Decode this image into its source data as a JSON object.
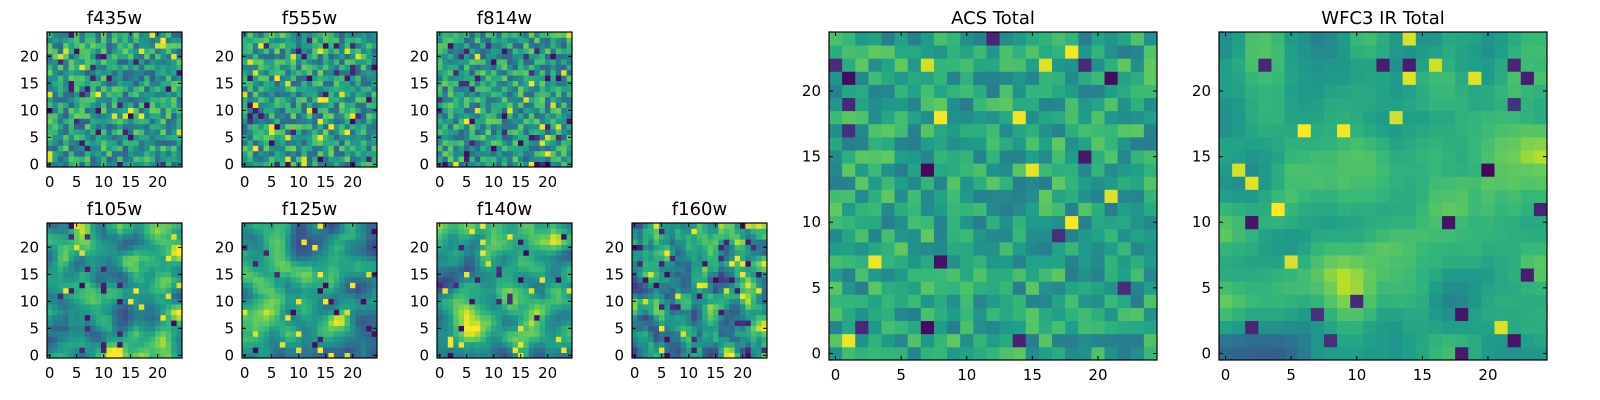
{
  "figure": {
    "colormap": "viridis",
    "colors": {
      "low": "#440154",
      "mid": "#21918c",
      "high": "#fde725",
      "frame": "#000000",
      "background": "#ffffff"
    }
  },
  "chart_data": [
    {
      "id": "f435w",
      "type": "heatmap",
      "title": "f435w",
      "grid_size": [
        25,
        25
      ],
      "seed": 11,
      "smoothness": 0,
      "mean": 0.62,
      "spread": 0.17,
      "outlier_rate": 0.045,
      "xticks": [
        0,
        5,
        10,
        15,
        20
      ],
      "yticks": [
        0,
        5,
        10,
        15,
        20
      ],
      "xlim": [
        0,
        24
      ],
      "ylim": [
        0,
        24
      ]
    },
    {
      "id": "f555w",
      "type": "heatmap",
      "title": "f555w",
      "grid_size": [
        25,
        25
      ],
      "seed": 23,
      "smoothness": 0,
      "mean": 0.62,
      "spread": 0.17,
      "outlier_rate": 0.045,
      "xticks": [
        0,
        5,
        10,
        15,
        20
      ],
      "yticks": [
        0,
        5,
        10,
        15,
        20
      ],
      "xlim": [
        0,
        24
      ],
      "ylim": [
        0,
        24
      ]
    },
    {
      "id": "f814w",
      "type": "heatmap",
      "title": "f814w",
      "grid_size": [
        25,
        25
      ],
      "seed": 37,
      "smoothness": 0,
      "mean": 0.62,
      "spread": 0.17,
      "outlier_rate": 0.045,
      "xticks": [
        0,
        5,
        10,
        15,
        20
      ],
      "yticks": [
        0,
        5,
        10,
        15,
        20
      ],
      "xlim": [
        0,
        24
      ],
      "ylim": [
        0,
        24
      ]
    },
    {
      "id": "f105w",
      "type": "heatmap",
      "title": "f105w",
      "grid_size": [
        25,
        25
      ],
      "seed": 41,
      "smoothness": 2,
      "mean": 0.64,
      "spread": 0.16,
      "outlier_rate": 0.03,
      "xticks": [
        0,
        5,
        10,
        15,
        20
      ],
      "yticks": [
        0,
        5,
        10,
        15,
        20
      ],
      "xlim": [
        0,
        24
      ],
      "ylim": [
        0,
        24
      ]
    },
    {
      "id": "f125w",
      "type": "heatmap",
      "title": "f125w",
      "grid_size": [
        25,
        25
      ],
      "seed": 53,
      "smoothness": 2,
      "mean": 0.6,
      "spread": 0.17,
      "outlier_rate": 0.035,
      "xticks": [
        0,
        5,
        10,
        15,
        20
      ],
      "yticks": [
        0,
        5,
        10,
        15,
        20
      ],
      "xlim": [
        0,
        24
      ],
      "ylim": [
        0,
        24
      ]
    },
    {
      "id": "f140w",
      "type": "heatmap",
      "title": "f140w",
      "grid_size": [
        25,
        25
      ],
      "seed": 67,
      "smoothness": 2,
      "mean": 0.66,
      "spread": 0.16,
      "outlier_rate": 0.03,
      "xticks": [
        0,
        5,
        10,
        15,
        20
      ],
      "yticks": [
        0,
        5,
        10,
        15,
        20
      ],
      "xlim": [
        0,
        24
      ],
      "ylim": [
        0,
        24
      ]
    },
    {
      "id": "f160w",
      "type": "heatmap",
      "title": "f160w",
      "grid_size": [
        25,
        25
      ],
      "seed": 79,
      "smoothness": 1,
      "mean": 0.6,
      "spread": 0.18,
      "outlier_rate": 0.05,
      "xticks": [
        0,
        5,
        10,
        15,
        20
      ],
      "yticks": [
        0,
        5,
        10,
        15,
        20
      ],
      "xlim": [
        0,
        24
      ],
      "ylim": [
        0,
        24
      ]
    },
    {
      "id": "acs-total",
      "type": "heatmap",
      "title": "ACS Total",
      "grid_size": [
        25,
        25
      ],
      "seed": 83,
      "smoothness": 0,
      "mean": 0.66,
      "spread": 0.12,
      "outlier_rate": 0.025,
      "xticks": [
        0,
        5,
        10,
        15,
        20
      ],
      "yticks": [
        0,
        5,
        10,
        15,
        20
      ],
      "xlim": [
        0,
        24
      ],
      "ylim": [
        0,
        24
      ]
    },
    {
      "id": "wfc3-ir-total",
      "type": "heatmap",
      "title": "WFC3 IR Total",
      "grid_size": [
        25,
        25
      ],
      "seed": 97,
      "smoothness": 2,
      "mean": 0.7,
      "spread": 0.1,
      "outlier_rate": 0.02,
      "xticks": [
        0,
        5,
        10,
        15,
        20
      ],
      "yticks": [
        0,
        5,
        10,
        15,
        20
      ],
      "xlim": [
        0,
        24
      ],
      "ylim": [
        0,
        24
      ]
    }
  ]
}
